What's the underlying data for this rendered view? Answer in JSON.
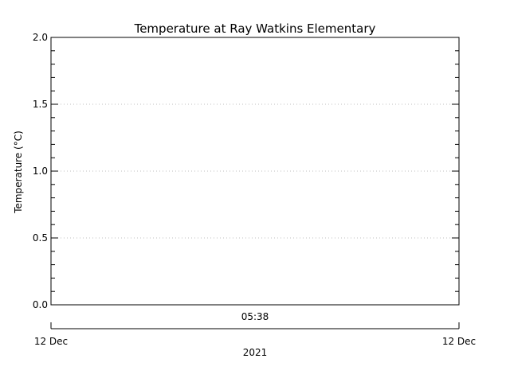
{
  "chart_data": {
    "type": "line",
    "title": "Temperature at Ray Watkins Elementary",
    "ylabel": "Temperature (°C)",
    "ylim": [
      0.0,
      2.0
    ],
    "yticks": [
      "0.0",
      "0.5",
      "1.0",
      "1.5",
      "2.0"
    ],
    "grid": true,
    "time_label": "05:38",
    "start_date": "12 Dec",
    "end_date": "12 Dec",
    "year": "2021",
    "series": []
  },
  "colors": {
    "axis": "#000000",
    "grid": "#bfbfbf",
    "background": "#ffffff"
  }
}
